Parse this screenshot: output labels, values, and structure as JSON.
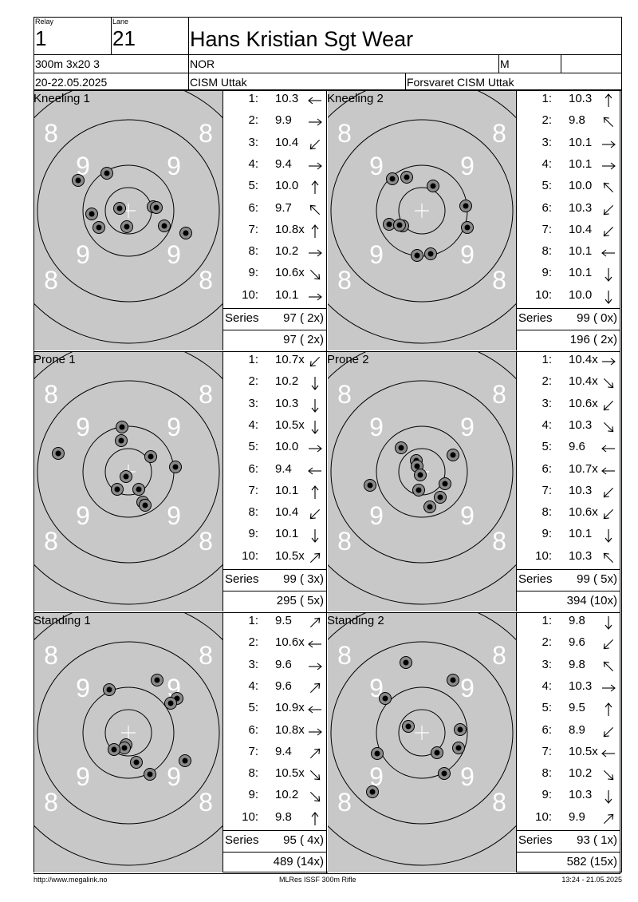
{
  "header": {
    "relay_label": "Relay",
    "relay": "1",
    "lane_label": "Lane",
    "lane": "21",
    "name": "Hans Kristian Sgt Wear",
    "event": "300m 3x20 3",
    "nation": "NOR",
    "gender": "M",
    "dates": "20-22.05.2025",
    "competition": "CISM Uttak",
    "club": "Forsvaret CISM Uttak"
  },
  "ring_labels": {
    "eight": "8",
    "nine": "9"
  },
  "series_label": "Series",
  "panels": [
    {
      "title": "Kneeling 1",
      "series": "97 ( 2x)",
      "total": "97 ( 2x)",
      "shots": [
        {
          "n": "1:",
          "v": "10.3",
          "dir": "W"
        },
        {
          "n": "2:",
          "v": "9.9",
          "dir": "E"
        },
        {
          "n": "3:",
          "v": "10.4",
          "dir": "SW"
        },
        {
          "n": "4:",
          "v": "9.4",
          "dir": "E"
        },
        {
          "n": "5:",
          "v": "10.0",
          "dir": "N"
        },
        {
          "n": "6:",
          "v": "9.7",
          "dir": "NW"
        },
        {
          "n": "7:",
          "v": "10.8x",
          "dir": "N"
        },
        {
          "n": "8:",
          "v": "10.2",
          "dir": "E"
        },
        {
          "n": "9:",
          "v": "10.6x",
          "dir": "SE"
        },
        {
          "n": "10:",
          "v": "10.1",
          "dir": "E"
        }
      ],
      "impacts": [
        [
          -63,
          -38
        ],
        [
          -27,
          -47
        ],
        [
          -46,
          4
        ],
        [
          -37,
          21
        ],
        [
          -11,
          -3
        ],
        [
          -2,
          20
        ],
        [
          31,
          -5
        ],
        [
          35,
          -4
        ],
        [
          45,
          19
        ],
        [
          72,
          28
        ]
      ]
    },
    {
      "title": "Kneeling 2",
      "series": "99 ( 0x)",
      "total": "196 ( 2x)",
      "shots": [
        {
          "n": "1:",
          "v": "10.3",
          "dir": "N"
        },
        {
          "n": "2:",
          "v": "9.8",
          "dir": "NW"
        },
        {
          "n": "3:",
          "v": "10.1",
          "dir": "E"
        },
        {
          "n": "4:",
          "v": "10.1",
          "dir": "E"
        },
        {
          "n": "5:",
          "v": "10.0",
          "dir": "NW"
        },
        {
          "n": "6:",
          "v": "10.3",
          "dir": "SW"
        },
        {
          "n": "7:",
          "v": "10.4",
          "dir": "SW"
        },
        {
          "n": "8:",
          "v": "10.1",
          "dir": "W"
        },
        {
          "n": "9:",
          "v": "10.1",
          "dir": "S"
        },
        {
          "n": "10:",
          "v": "10.0",
          "dir": "S"
        }
      ],
      "impacts": [
        [
          -37,
          -40
        ],
        [
          -19,
          -42
        ],
        [
          14,
          -31
        ],
        [
          55,
          -6
        ],
        [
          57,
          21
        ],
        [
          -41,
          17
        ],
        [
          -24,
          19
        ],
        [
          -28,
          18
        ],
        [
          -6,
          56
        ],
        [
          11,
          54
        ]
      ]
    },
    {
      "title": "Prone 1",
      "series": "99 ( 3x)",
      "total": "295 ( 5x)",
      "shots": [
        {
          "n": "1:",
          "v": "10.7x",
          "dir": "SW"
        },
        {
          "n": "2:",
          "v": "10.2",
          "dir": "S"
        },
        {
          "n": "3:",
          "v": "10.3",
          "dir": "S"
        },
        {
          "n": "4:",
          "v": "10.5x",
          "dir": "S"
        },
        {
          "n": "5:",
          "v": "10.0",
          "dir": "E"
        },
        {
          "n": "6:",
          "v": "9.4",
          "dir": "W"
        },
        {
          "n": "7:",
          "v": "10.1",
          "dir": "N"
        },
        {
          "n": "8:",
          "v": "10.4",
          "dir": "SW"
        },
        {
          "n": "9:",
          "v": "10.1",
          "dir": "S"
        },
        {
          "n": "10:",
          "v": "10.5x",
          "dir": "NE"
        }
      ],
      "impacts": [
        [
          -8,
          -56
        ],
        [
          -9,
          -39
        ],
        [
          -88,
          -23
        ],
        [
          28,
          -19
        ],
        [
          59,
          -6
        ],
        [
          -3,
          6
        ],
        [
          -14,
          22
        ],
        [
          13,
          22
        ],
        [
          18,
          38
        ],
        [
          21,
          42
        ]
      ]
    },
    {
      "title": "Prone 2",
      "series": "99 ( 5x)",
      "total": "394 (10x)",
      "shots": [
        {
          "n": "1:",
          "v": "10.4x",
          "dir": "E"
        },
        {
          "n": "2:",
          "v": "10.4x",
          "dir": "SE"
        },
        {
          "n": "3:",
          "v": "10.6x",
          "dir": "SW"
        },
        {
          "n": "4:",
          "v": "10.3",
          "dir": "SE"
        },
        {
          "n": "5:",
          "v": "9.6",
          "dir": "W"
        },
        {
          "n": "6:",
          "v": "10.7x",
          "dir": "W"
        },
        {
          "n": "7:",
          "v": "10.3",
          "dir": "SW"
        },
        {
          "n": "8:",
          "v": "10.6x",
          "dir": "SW"
        },
        {
          "n": "9:",
          "v": "10.1",
          "dir": "S"
        },
        {
          "n": "10:",
          "v": "10.3",
          "dir": "NW"
        }
      ],
      "impacts": [
        [
          -26,
          -30
        ],
        [
          -7,
          -14
        ],
        [
          -6,
          -7
        ],
        [
          39,
          -21
        ],
        [
          -65,
          17
        ],
        [
          -4,
          23
        ],
        [
          29,
          15
        ],
        [
          23,
          32
        ],
        [
          10,
          44
        ],
        [
          -2,
          4
        ]
      ]
    },
    {
      "title": "Standing 1",
      "series": "95 ( 4x)",
      "total": "489 (14x)",
      "shots": [
        {
          "n": "1:",
          "v": "9.5",
          "dir": "NE"
        },
        {
          "n": "2:",
          "v": "10.6x",
          "dir": "W"
        },
        {
          "n": "3:",
          "v": "9.6",
          "dir": "E"
        },
        {
          "n": "4:",
          "v": "9.6",
          "dir": "NE"
        },
        {
          "n": "5:",
          "v": "10.9x",
          "dir": "W"
        },
        {
          "n": "6:",
          "v": "10.8x",
          "dir": "E"
        },
        {
          "n": "7:",
          "v": "9.4",
          "dir": "NE"
        },
        {
          "n": "8:",
          "v": "10.5x",
          "dir": "SE"
        },
        {
          "n": "9:",
          "v": "10.2",
          "dir": "SE"
        },
        {
          "n": "10:",
          "v": "9.8",
          "dir": "N"
        }
      ],
      "impacts": [
        [
          -24,
          -54
        ],
        [
          36,
          -66
        ],
        [
          61,
          -43
        ],
        [
          53,
          -37
        ],
        [
          -3,
          15
        ],
        [
          -5,
          19
        ],
        [
          -18,
          21
        ],
        [
          10,
          37
        ],
        [
          27,
          52
        ],
        [
          71,
          35
        ]
      ]
    },
    {
      "title": "Standing 2",
      "series": "93 ( 1x)",
      "total": "582 (15x)",
      "shots": [
        {
          "n": "1:",
          "v": "9.8",
          "dir": "S"
        },
        {
          "n": "2:",
          "v": "9.6",
          "dir": "SW"
        },
        {
          "n": "3:",
          "v": "9.8",
          "dir": "NW"
        },
        {
          "n": "4:",
          "v": "10.3",
          "dir": "E"
        },
        {
          "n": "5:",
          "v": "9.5",
          "dir": "N"
        },
        {
          "n": "6:",
          "v": "8.9",
          "dir": "SW"
        },
        {
          "n": "7:",
          "v": "10.5x",
          "dir": "W"
        },
        {
          "n": "8:",
          "v": "10.2",
          "dir": "SE"
        },
        {
          "n": "9:",
          "v": "10.3",
          "dir": "S"
        },
        {
          "n": "10:",
          "v": "9.9",
          "dir": "NE"
        }
      ],
      "impacts": [
        [
          -20,
          -88
        ],
        [
          39,
          -66
        ],
        [
          -46,
          -43
        ],
        [
          -17,
          -8
        ],
        [
          48,
          -4
        ],
        [
          46,
          19
        ],
        [
          19,
          25
        ],
        [
          -56,
          26
        ],
        [
          28,
          51
        ],
        [
          -62,
          74
        ]
      ]
    }
  ],
  "footer": {
    "left": "http://www.megalink.no",
    "center": "MLRes ISSF 300m Rifle",
    "right": "13:24 - 21.05.2025"
  }
}
